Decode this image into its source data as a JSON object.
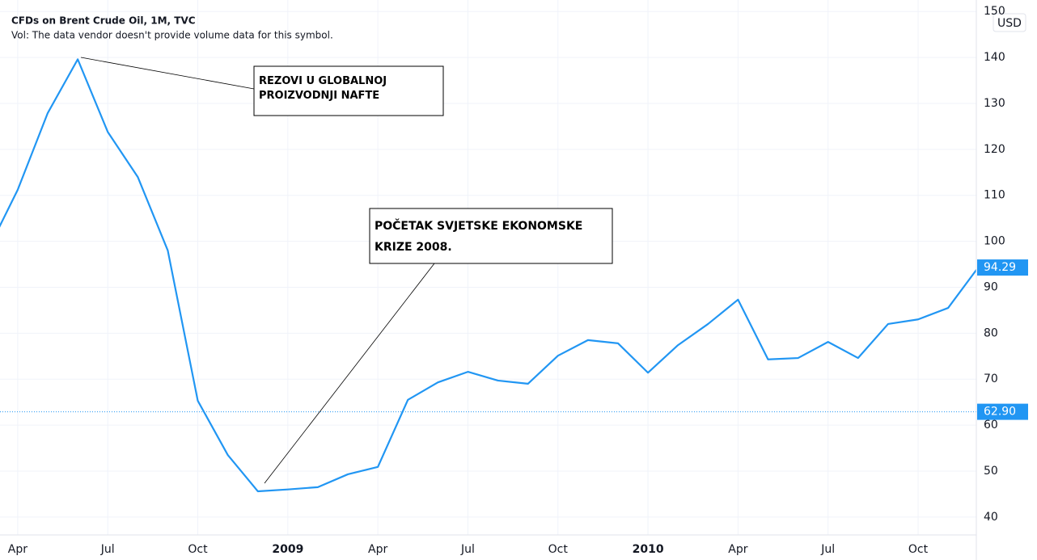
{
  "chart_data": {
    "type": "line",
    "title": "CFDs on Brent Crude Oil, 1M, TVC",
    "subtitle": "Vol: The data vendor doesn't provide volume data for this symbol.",
    "currency": "USD",
    "x": [
      2,
      3,
      4,
      5,
      6,
      7,
      8,
      9,
      10,
      11,
      12,
      13,
      14,
      15,
      16,
      17,
      18,
      19,
      20,
      21,
      22,
      23,
      24,
      25,
      26,
      27,
      28,
      29,
      30,
      31,
      32,
      33,
      34,
      35
    ],
    "series": [
      {
        "name": "Brent Crude Oil",
        "color": "#2196f3",
        "values": [
          98,
          111.2,
          127.9,
          139.6,
          123.8,
          114.0,
          98.0,
          65.3,
          53.5,
          45.6,
          46.0,
          46.5,
          49.3,
          50.9,
          65.5,
          69.3,
          71.6,
          69.7,
          69.0,
          75.1,
          78.5,
          77.8,
          71.4,
          77.4,
          82.0,
          87.3,
          74.3,
          74.6,
          78.1,
          74.6,
          82.0,
          83.0,
          85.5,
          94.29
        ]
      }
    ],
    "xlim": [
      2.41,
      34.94
    ],
    "xticks": [
      {
        "value": 3,
        "label": "Apr"
      },
      {
        "value": 6,
        "label": "Jul"
      },
      {
        "value": 9,
        "label": "Oct"
      },
      {
        "value": 12,
        "label": "2009"
      },
      {
        "value": 15,
        "label": "Apr"
      },
      {
        "value": 18,
        "label": "Jul"
      },
      {
        "value": 21,
        "label": "Oct"
      },
      {
        "value": 24,
        "label": "2010"
      },
      {
        "value": 27,
        "label": "Apr"
      },
      {
        "value": 30,
        "label": "Jul"
      },
      {
        "value": 33,
        "label": "Oct"
      }
    ],
    "ylim": [
      36.1,
      152.5
    ],
    "yticks": [
      40,
      50,
      60,
      70,
      80,
      90,
      100,
      110,
      120,
      130,
      140,
      150
    ],
    "grid": true,
    "last_price": 94.29,
    "reference_price": {
      "value": 62.9,
      "label": "62.90"
    },
    "annotations": [
      {
        "lines": [
          "REZOVI U GLOBALNOJ",
          "PROIZVODNJI NAFTE"
        ]
      },
      {
        "lines": [
          "POČETAK SVJETSKE EKONOMSKE",
          "KRIZE 2008."
        ]
      }
    ]
  }
}
